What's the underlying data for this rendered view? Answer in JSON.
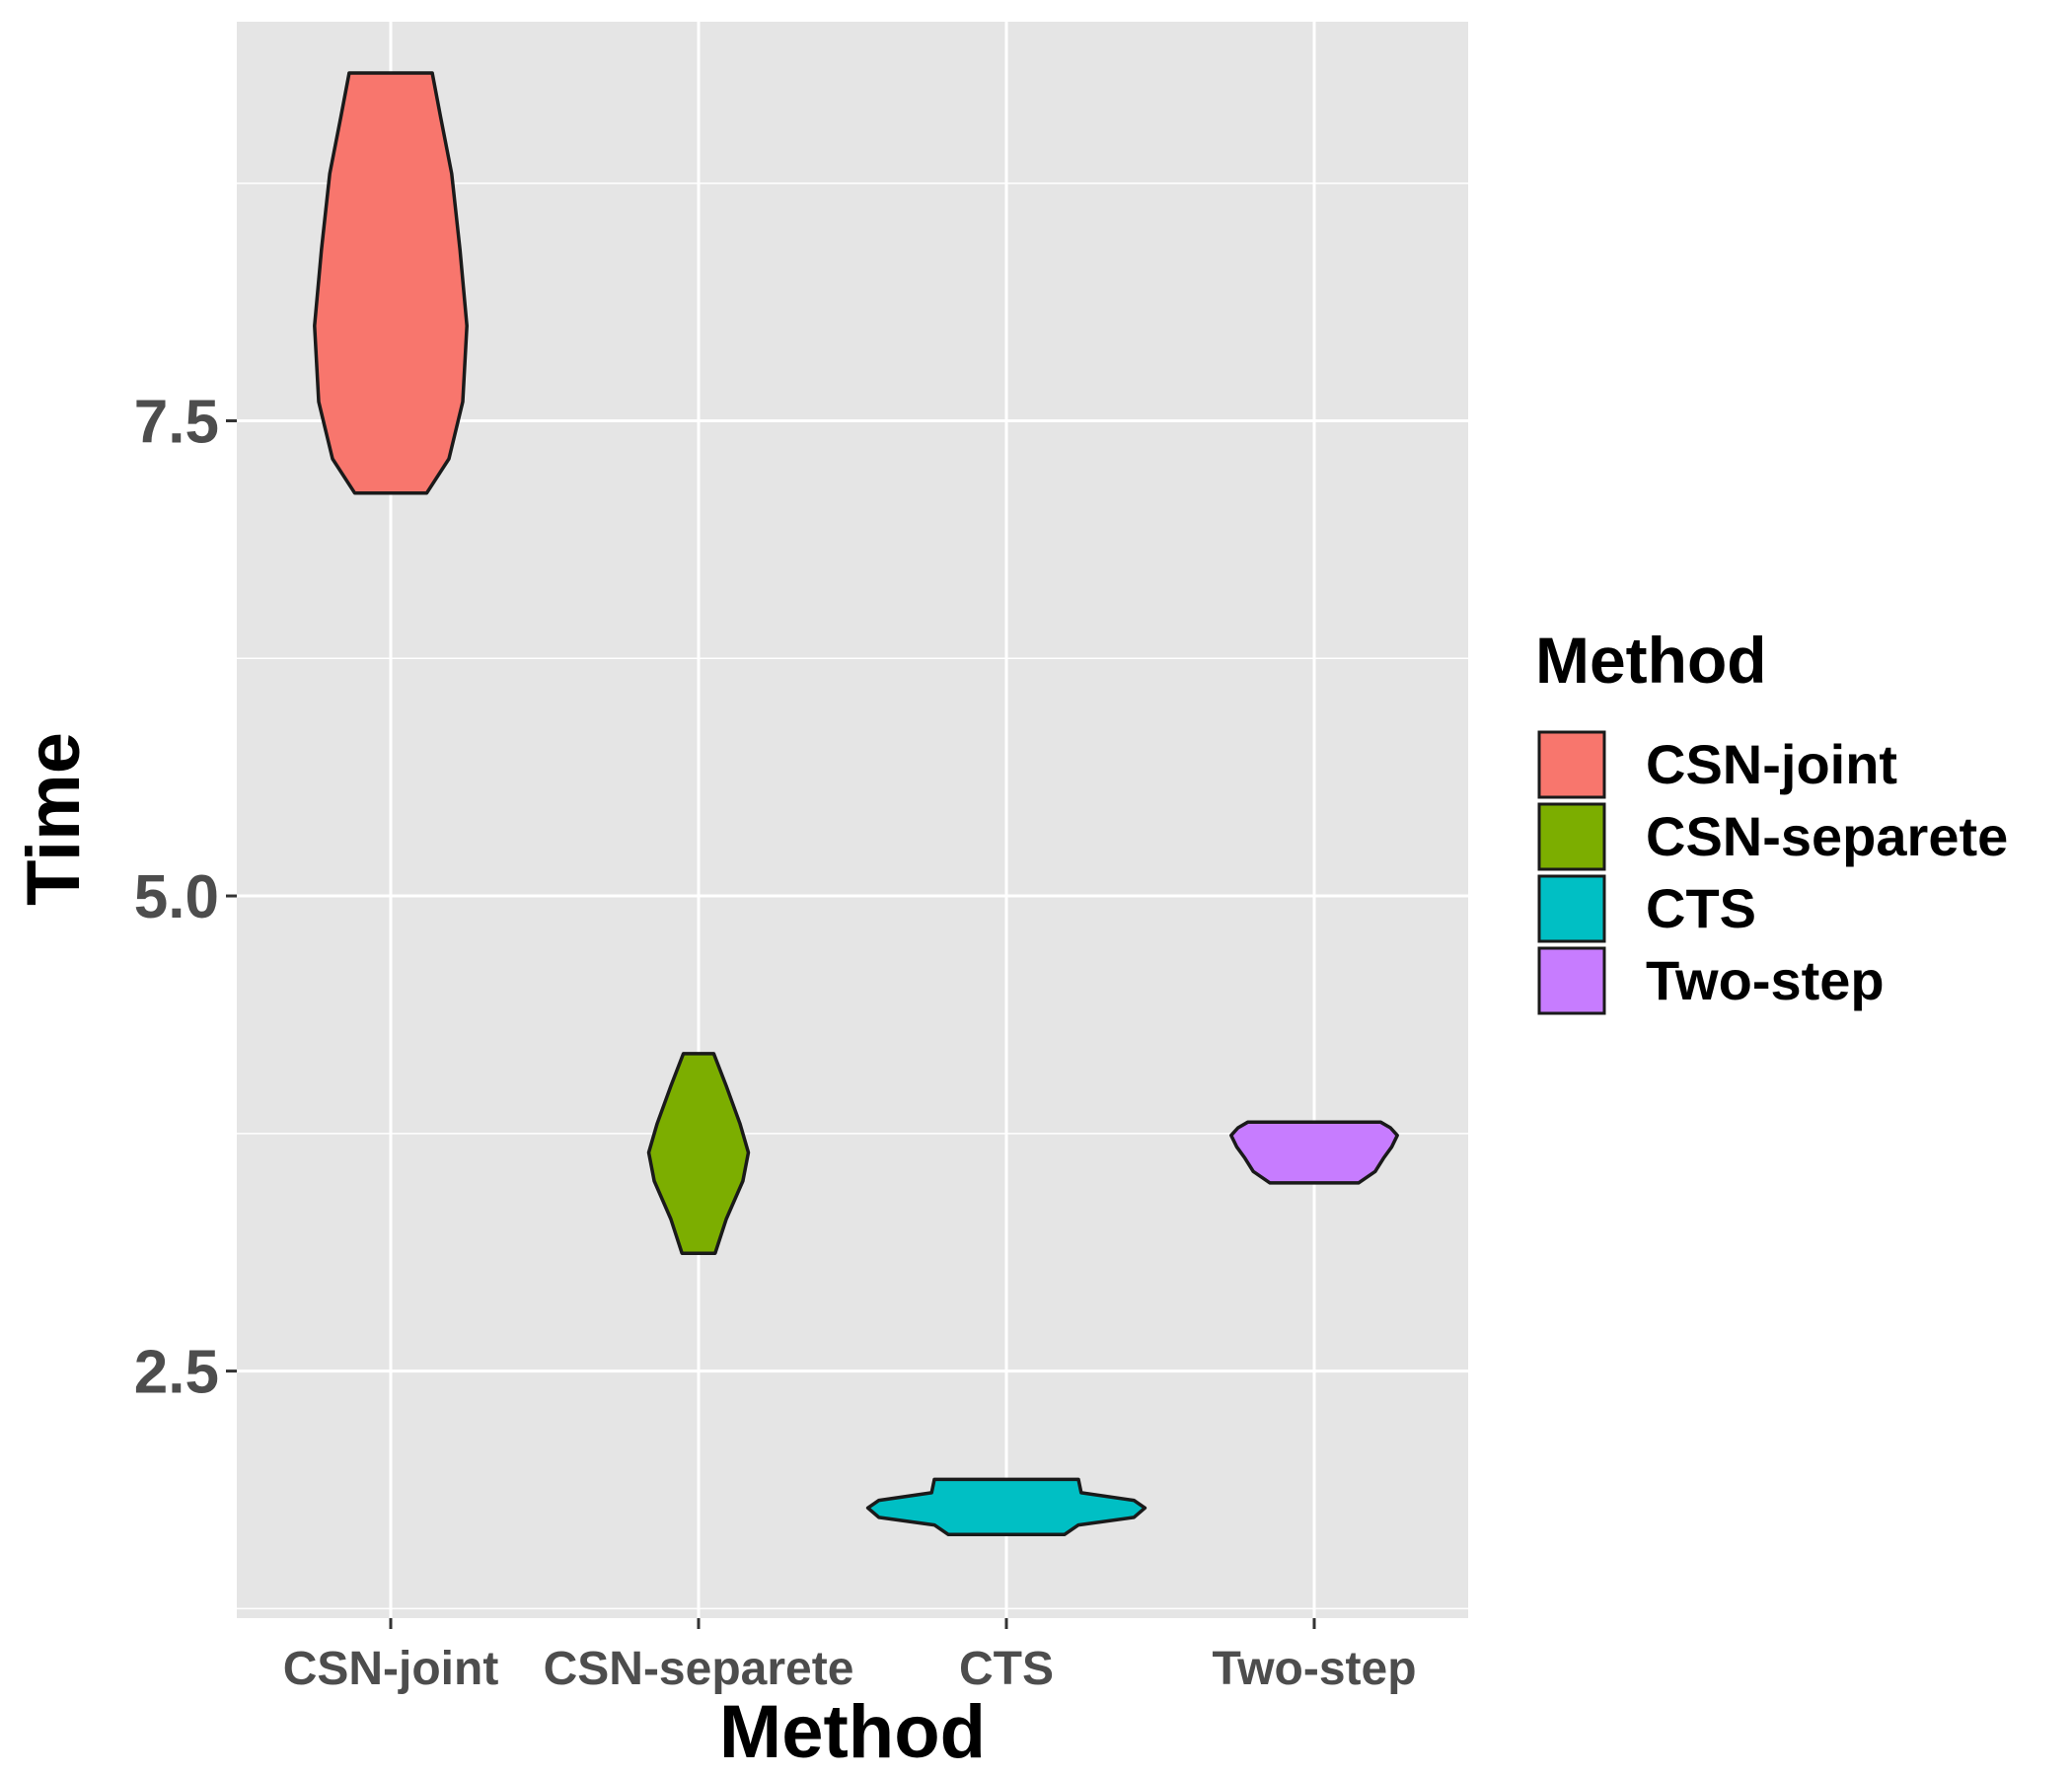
{
  "chart_data": {
    "type": "violin",
    "xlabel": "Method",
    "ylabel": "Time",
    "categories": [
      "CSN-joint",
      "CSN-separete",
      "CTS",
      "Two-step"
    ],
    "ylim": [
      1.2,
      9.6
    ],
    "yticks": [
      2.5,
      5.0,
      7.5
    ],
    "ytick_labels": [
      "2.5",
      "5.0",
      "7.5"
    ],
    "grid": true,
    "legend": {
      "title": "Method",
      "position": "right",
      "entries": [
        "CSN-joint",
        "CSN-separete",
        "CTS",
        "Two-step"
      ]
    },
    "series": [
      {
        "name": "CSN-joint",
        "color": "#F8766D",
        "min": 7.12,
        "max": 9.33,
        "density": [
          [
            7.12,
            0.26
          ],
          [
            7.3,
            0.42
          ],
          [
            7.6,
            0.52
          ],
          [
            8.0,
            0.55
          ],
          [
            8.4,
            0.5
          ],
          [
            8.8,
            0.44
          ],
          [
            9.1,
            0.36
          ],
          [
            9.33,
            0.3
          ]
        ]
      },
      {
        "name": "CSN-separete",
        "color": "#7CAE00",
        "min": 3.12,
        "max": 4.17,
        "density": [
          [
            3.12,
            0.12
          ],
          [
            3.3,
            0.2
          ],
          [
            3.5,
            0.32
          ],
          [
            3.65,
            0.36
          ],
          [
            3.8,
            0.3
          ],
          [
            4.0,
            0.2
          ],
          [
            4.17,
            0.11
          ]
        ]
      },
      {
        "name": "CTS",
        "color": "#00BFC4",
        "min": 1.64,
        "max": 1.93,
        "density": [
          [
            1.64,
            0.42
          ],
          [
            1.69,
            0.52
          ],
          [
            1.73,
            0.92
          ],
          [
            1.78,
            1.0
          ],
          [
            1.82,
            0.92
          ],
          [
            1.86,
            0.54
          ],
          [
            1.93,
            0.52
          ]
        ]
      },
      {
        "name": "Two-step",
        "color": "#C77CFF",
        "min": 3.49,
        "max": 3.81,
        "density": [
          [
            3.49,
            0.32
          ],
          [
            3.55,
            0.44
          ],
          [
            3.62,
            0.5
          ],
          [
            3.68,
            0.56
          ],
          [
            3.74,
            0.6
          ],
          [
            3.78,
            0.55
          ],
          [
            3.81,
            0.48
          ]
        ]
      }
    ]
  }
}
